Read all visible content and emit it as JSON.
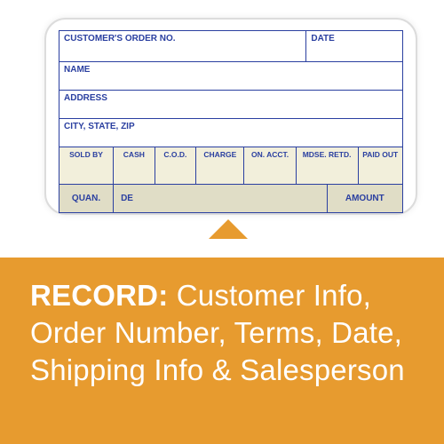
{
  "colors": {
    "form_border": "#2a3fa0",
    "form_label": "#2a3fa0",
    "payment_bg": "#f2efdb",
    "items_bg": "#e0ddc6",
    "callout_bg": "#e79b2f",
    "callout_text": "#ffffff"
  },
  "form": {
    "top": {
      "order_no": "CUSTOMER'S ORDER NO.",
      "date": "DATE"
    },
    "name": "NAME",
    "address": "ADDRESS",
    "city": "CITY, STATE, ZIP",
    "payment_cols": [
      "SOLD BY",
      "CASH",
      "C.O.D.",
      "CHARGE",
      "ON. ACCT.",
      "MDSE. RETD.",
      "PAID OUT"
    ],
    "items_cols": {
      "quan": "QUAN.",
      "desc_prefix": "DE",
      "amount": "AMOUNT"
    }
  },
  "callout": {
    "lead": "RECORD:",
    "text": " Customer Info, Order Number, Terms, Date, Shipping Info & Salesperson"
  },
  "layout": {
    "order_no_width_pct": 72,
    "date_width_pct": 28,
    "payment_widths_pct": [
      16,
      12,
      12,
      14,
      15,
      18,
      13
    ],
    "items_widths_pct": [
      16,
      62,
      22
    ]
  }
}
